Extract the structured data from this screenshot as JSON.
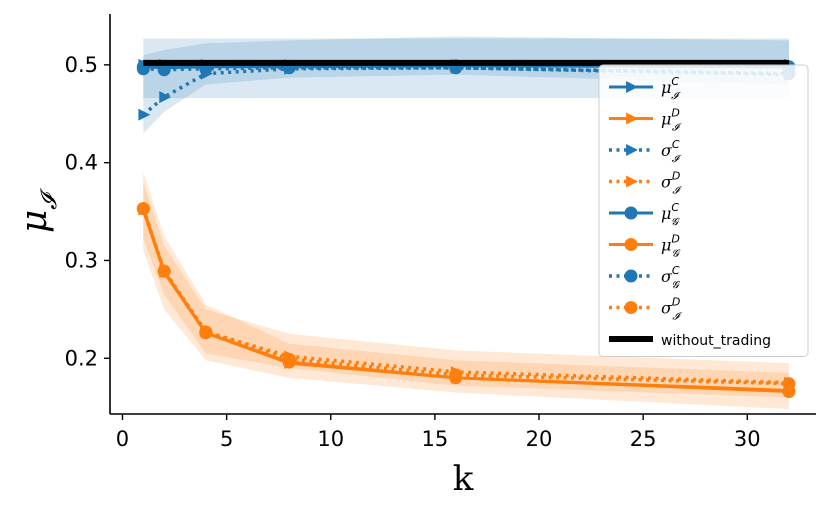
{
  "chart_data": {
    "type": "line",
    "title": "",
    "xlabel": "k",
    "ylabel": "μ_𝓘",
    "xlim": [
      -0.6,
      33.3
    ],
    "ylim": [
      0.143,
      0.552
    ],
    "xticks": [
      0,
      5,
      10,
      15,
      20,
      25,
      30
    ],
    "yticks": [
      0.2,
      0.3,
      0.4,
      0.5
    ],
    "legend_position": "right",
    "grid": false,
    "x": [
      1,
      2,
      4,
      8,
      16,
      32
    ],
    "series": [
      {
        "name": "μ_I^C",
        "legend_main": "μ",
        "legend_sub": "𝓘",
        "legend_sup": "C",
        "color": "#1f77b4",
        "linestyle": "solid",
        "marker": "triangle",
        "values": [
          0.5,
          0.5,
          0.5,
          0.5,
          0.5,
          0.5
        ]
      },
      {
        "name": "μ_I^D",
        "legend_main": "μ",
        "legend_sub": "𝓘",
        "legend_sup": "D",
        "color": "#ff7f0e",
        "linestyle": "solid",
        "marker": "triangle",
        "values": [
          0.352,
          0.288,
          0.226,
          0.195,
          0.18,
          0.167
        ]
      },
      {
        "name": "σ_I^C",
        "legend_main": "σ",
        "legend_sub": "𝓘",
        "legend_sup": "C",
        "color": "#1f77b4",
        "linestyle": "dotted",
        "marker": "triangle",
        "values": [
          0.449,
          0.467,
          0.491,
          0.496,
          0.497,
          0.49
        ]
      },
      {
        "name": "σ_I^D",
        "legend_main": "σ",
        "legend_sub": "𝓘",
        "legend_sup": "D",
        "color": "#ff7f0e",
        "linestyle": "dotted",
        "marker": "triangle",
        "values": [
          0.352,
          0.29,
          0.227,
          0.202,
          0.186,
          0.175
        ]
      },
      {
        "name": "μ_G^C",
        "legend_main": "μ",
        "legend_sub": "𝓖",
        "legend_sup": "C",
        "color": "#1f77b4",
        "linestyle": "solid",
        "marker": "circle",
        "values": [
          0.498,
          0.497,
          0.498,
          0.498,
          0.499,
          0.498
        ]
      },
      {
        "name": "μ_G^D",
        "legend_main": "μ",
        "legend_sub": "𝓖",
        "legend_sup": "D",
        "color": "#ff7f0e",
        "linestyle": "solid",
        "marker": "circle",
        "values": [
          0.353,
          0.289,
          0.226,
          0.196,
          0.18,
          0.166
        ]
      },
      {
        "name": "σ_G^C",
        "legend_main": "σ",
        "legend_sub": "𝓖",
        "legend_sup": "C",
        "color": "#1f77b4",
        "linestyle": "dotted",
        "marker": "circle",
        "values": [
          0.496,
          0.495,
          0.496,
          0.497,
          0.497,
          0.491
        ]
      },
      {
        "name": "σ_I^D",
        "legend_main": "σ",
        "legend_sub": "𝓘",
        "legend_sup": "D",
        "color": "#ff7f0e",
        "linestyle": "dotted",
        "marker": "circle",
        "values": [
          0.353,
          0.289,
          0.227,
          0.199,
          0.183,
          0.174
        ]
      },
      {
        "name": "without_trading",
        "color": "#000000",
        "linestyle": "solid",
        "marker": "none",
        "x": [
          1,
          32
        ],
        "values": [
          0.502,
          0.502
        ]
      }
    ],
    "bands": [
      {
        "color": "#1f77b4",
        "lower": [
          0.466,
          0.466,
          0.466,
          0.466,
          0.466,
          0.466
        ],
        "upper": [
          0.527,
          0.527,
          0.527,
          0.527,
          0.527,
          0.527
        ]
      },
      {
        "color": "#1f77b4",
        "lower": [
          0.43,
          0.452,
          0.48,
          0.487,
          0.49,
          0.48
        ],
        "upper": [
          0.51,
          0.515,
          0.522,
          0.525,
          0.529,
          0.525
        ]
      },
      {
        "color": "#ff7f0e",
        "lower": [
          0.31,
          0.25,
          0.198,
          0.18,
          0.165,
          0.148
        ],
        "upper": [
          0.39,
          0.325,
          0.255,
          0.215,
          0.198,
          0.185
        ]
      },
      {
        "color": "#ff7f0e",
        "lower": [
          0.322,
          0.265,
          0.205,
          0.19,
          0.172,
          0.16
        ],
        "upper": [
          0.38,
          0.315,
          0.25,
          0.225,
          0.208,
          0.195
        ]
      }
    ]
  }
}
